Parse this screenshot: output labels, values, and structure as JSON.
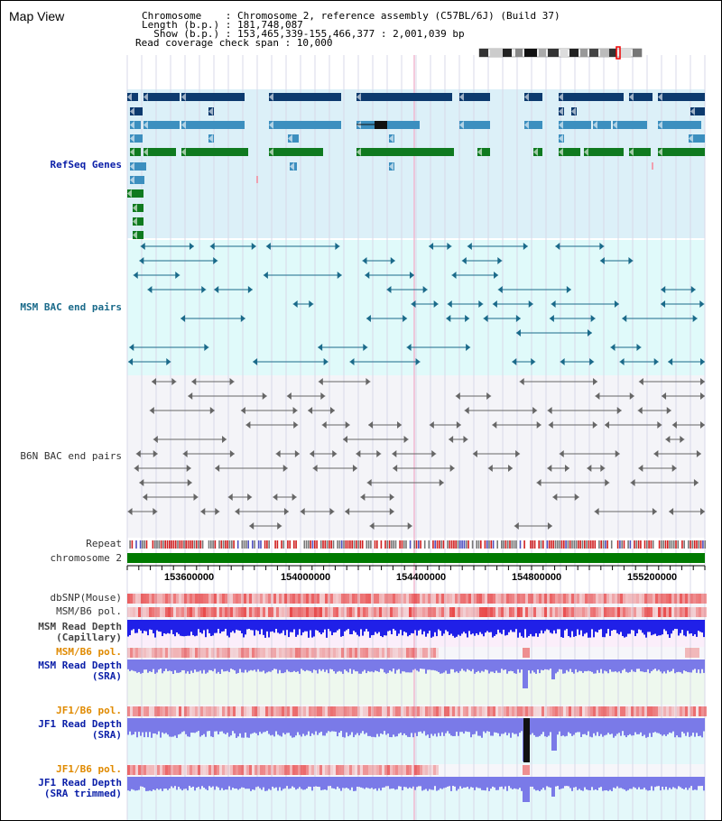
{
  "header": {
    "map_title": "Map View",
    "chromosome_line": "Chromosome    : Chromosome 2, reference assembly (C57BL/6J) (Build 37)",
    "length_line": "Length (b.p.) : 181,748,087",
    "show_line": "  Show (b.p.) : 153,465,339-155,466,377 : 2,001,039 bp",
    "read_span_line": "Read coverage check span : 10,000"
  },
  "tracks": {
    "refseq": "RefSeq Genes",
    "msm_bac": "MSM BAC end pairs",
    "b6n_bac": "B6N BAC end pairs",
    "repeat": "Repeat",
    "chromosome": "chromosome 2",
    "dbsnp": "dbSNP(Mouse)",
    "msm_b6_pol": "MSM/B6 pol.",
    "msm_depth_cap": "MSM Read Depth\n(Capillary)",
    "msm_b6_pol_sra": "MSM/B6 pol.",
    "msm_depth_sra": "MSM Read Depth\n(SRA)",
    "jf1_b6_pol": "JF1/B6 pol.",
    "jf1_depth_sra": "JF1 Read Depth\n(SRA)",
    "jf1_b6_pol_trim": "JF1/B6 pol.",
    "jf1_depth_trim": "JF1 Read Depth\n(SRA trimmed)"
  },
  "axis": {
    "ticks": [
      "153600000",
      "154000000",
      "154400000",
      "154800000",
      "155200000"
    ]
  },
  "colors": {
    "gene_dark": "#0d3a6e",
    "gene_mid": "#3c8fbf",
    "gene_green": "#0f7a1f",
    "msm_bac": "#1a6a8a",
    "b6n_bac": "#666666",
    "chromosome_bar": "#007a00",
    "depth_blue": "#2020e8",
    "depth_light": "#7a7ae8"
  }
}
